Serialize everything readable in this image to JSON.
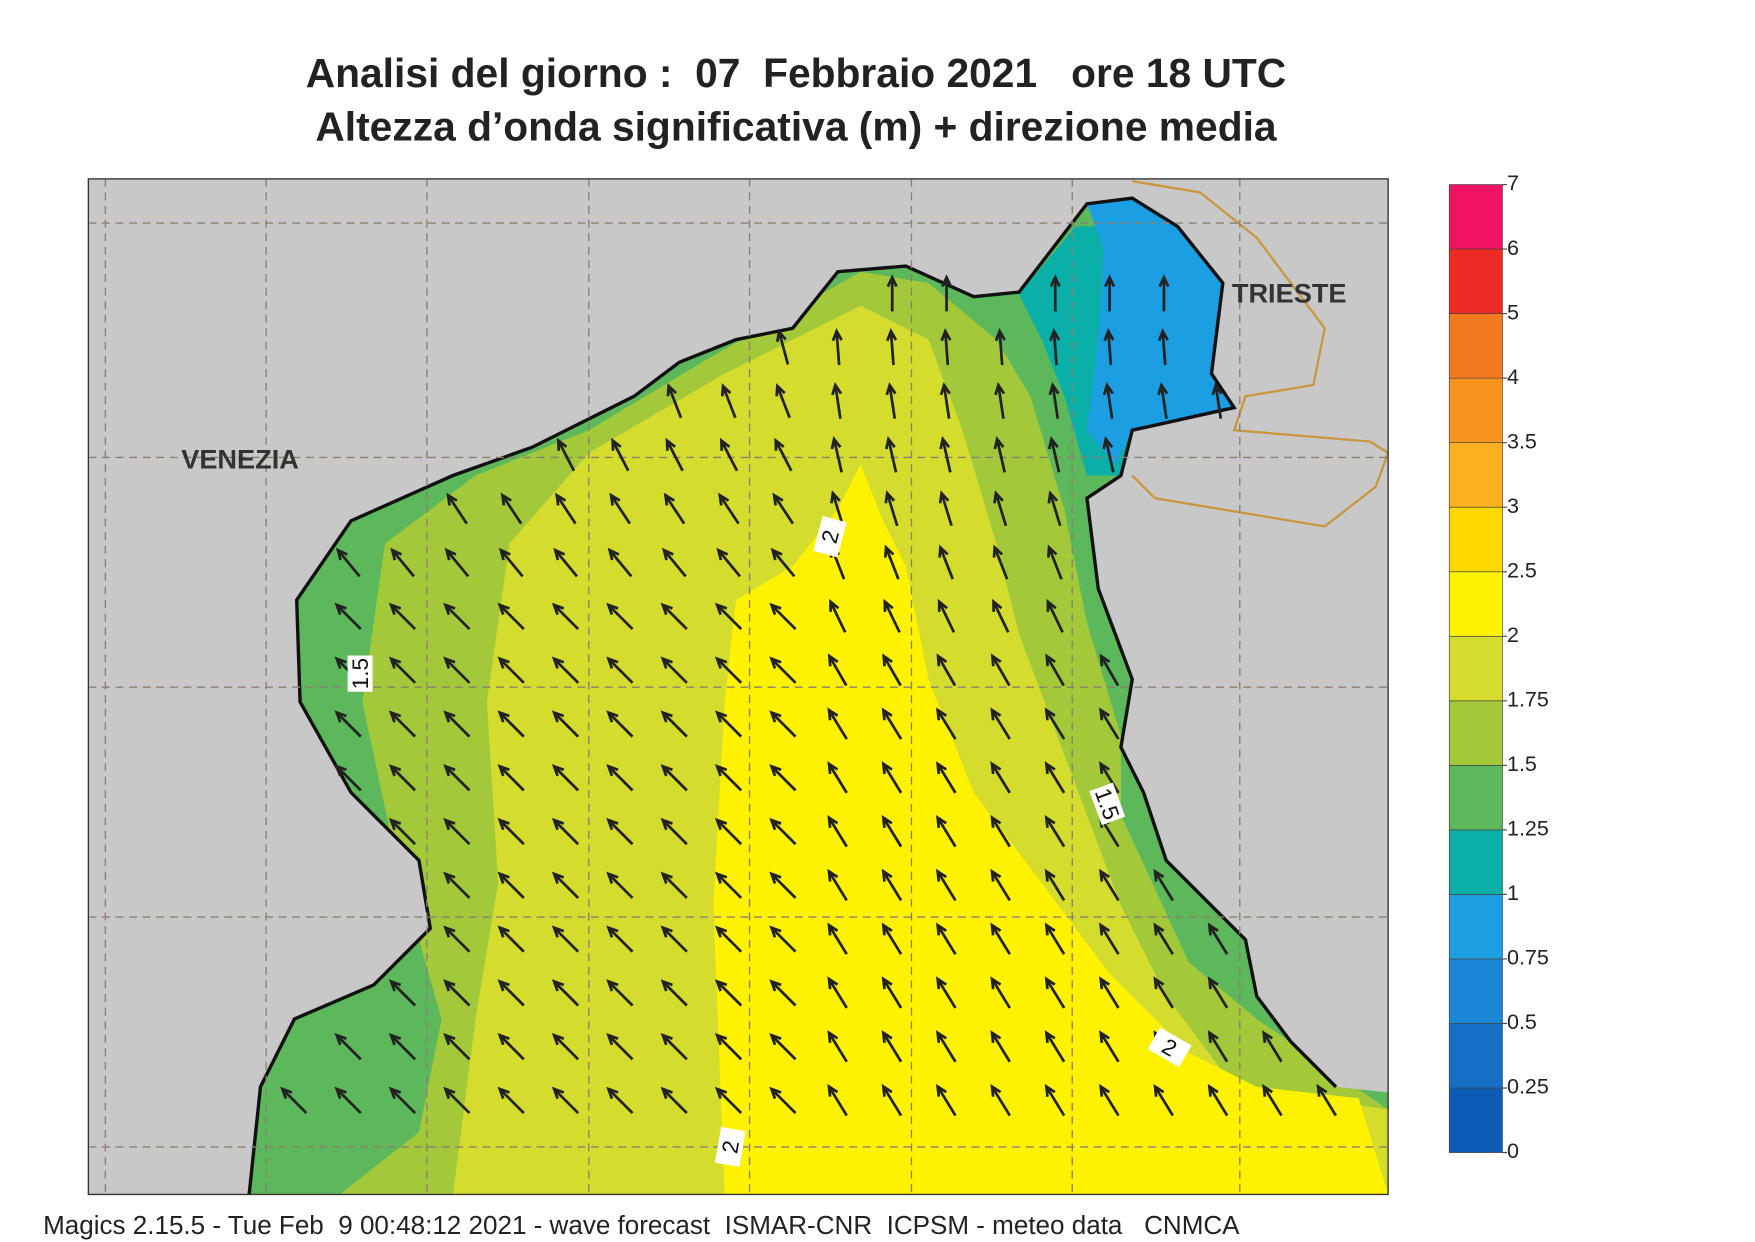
{
  "header": {
    "title": "Analisi del giorno :  07  Febbraio 2021   ore 18 UTC",
    "subtitle": "Altezza d’onda significativa (m) + direzione media"
  },
  "map": {
    "places": [
      {
        "name": "VENEZIA"
      },
      {
        "name": "TRIESTE"
      }
    ],
    "contour_labels": [
      2,
      1.5,
      1.5,
      2,
      2
    ]
  },
  "colorbar": {
    "levels": [
      0,
      0.25,
      0.5,
      0.75,
      1,
      1.25,
      1.5,
      1.75,
      2,
      2.5,
      3,
      3.5,
      4,
      5,
      6,
      7
    ],
    "colors": [
      "#0a5cb4",
      "#1470c6",
      "#1a86d6",
      "#1c9fe2",
      "#0aafa8",
      "#5db85b",
      "#a3c93b",
      "#d4dc2e",
      "#fff200",
      "#ffd800",
      "#fbb01e",
      "#f7941d",
      "#f47a20",
      "#ee2a24",
      "#ee1462"
    ]
  },
  "footer": "Magics 2.15.5 - Tue Feb  9 00:48:12 2021 - wave forecast  ISMAR-CNR  ICPSM - meteo data   CNMCA"
}
